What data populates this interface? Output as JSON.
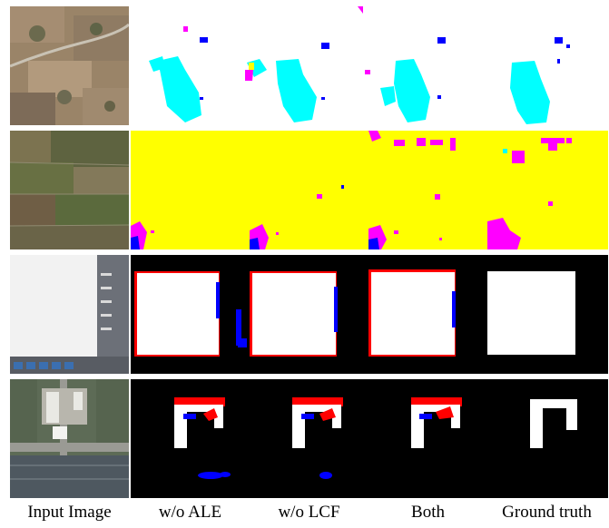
{
  "figure": {
    "columns": [
      {
        "label": "Input Image"
      },
      {
        "label": "w/o ALE"
      },
      {
        "label": "w/o LCF"
      },
      {
        "label": "Both"
      },
      {
        "label": "Ground truth"
      }
    ],
    "rows": [
      {
        "content": "aerial image with segmentation maps (cyan, blue, magenta classes on white)"
      },
      {
        "content": "farmland aerial image with segmentation maps (yellow background, magenta and cyan patches)"
      },
      {
        "content": "warehouse rooftop aerial image with building masks (white on black, red and blue error pixels)"
      },
      {
        "content": "building aerial image with building masks (white on black, red and blue error pixels)"
      }
    ],
    "colors": {
      "cyan": "#00ffff",
      "blue": "#0000ff",
      "magenta": "#ff00ff",
      "yellow": "#ffff00",
      "red": "#ff0000",
      "white": "#ffffff",
      "black": "#000000"
    }
  }
}
